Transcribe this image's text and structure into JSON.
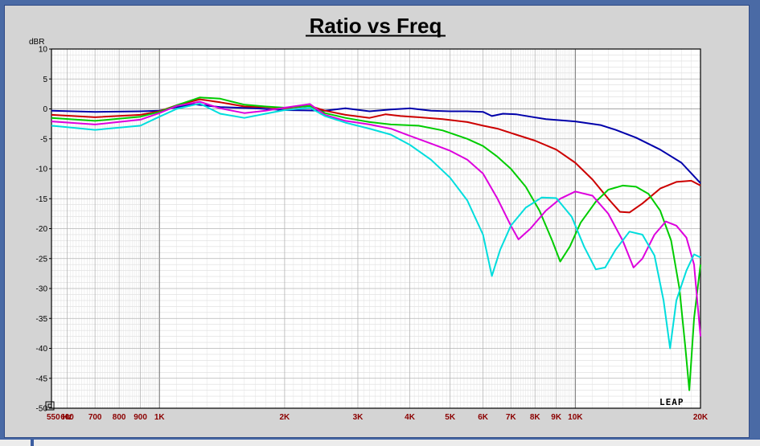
{
  "chart_data": {
    "type": "line",
    "title": "Ratio vs Freq",
    "ylabel": "dBR",
    "xlabel": "",
    "x_scale": "log",
    "xlim": [
      550,
      20000
    ],
    "ylim": [
      -50,
      10
    ],
    "y_ticks": [
      10,
      5,
      0,
      -5,
      -10,
      -15,
      -20,
      -25,
      -30,
      -35,
      -40,
      -45,
      -50
    ],
    "y_tick_labels": [
      "10",
      "5",
      "0",
      "-5",
      "-10",
      "-15",
      "-20",
      "-25",
      "-30",
      "-35",
      "-40",
      "-45",
      "-50"
    ],
    "x_ticks": [
      550,
      600,
      700,
      800,
      900,
      1000,
      2000,
      3000,
      4000,
      5000,
      6000,
      7000,
      8000,
      9000,
      10000,
      20000
    ],
    "x_tick_labels": [
      "550 Hz",
      "600",
      "700",
      "800",
      "900",
      "1K",
      "2K",
      "3K",
      "4K",
      "5K",
      "6K",
      "7K",
      "8K",
      "9K",
      "10K",
      "20K"
    ],
    "grid": true,
    "logo": "LEAP",
    "series": [
      {
        "color": "#0000aa",
        "points": [
          [
            550,
            -0.3
          ],
          [
            700,
            -0.5
          ],
          [
            900,
            -0.4
          ],
          [
            1000,
            -0.3
          ],
          [
            1200,
            0.8
          ],
          [
            1400,
            0.3
          ],
          [
            1700,
            0.1
          ],
          [
            2000,
            -0.2
          ],
          [
            2500,
            -0.3
          ],
          [
            2800,
            0.1
          ],
          [
            3200,
            -0.4
          ],
          [
            3600,
            -0.1
          ],
          [
            4000,
            0.1
          ],
          [
            4500,
            -0.3
          ],
          [
            5000,
            -0.4
          ],
          [
            5500,
            -0.4
          ],
          [
            6000,
            -0.5
          ],
          [
            6300,
            -1.2
          ],
          [
            6700,
            -0.8
          ],
          [
            7200,
            -0.9
          ],
          [
            7800,
            -1.3
          ],
          [
            8500,
            -1.7
          ],
          [
            10000,
            -2.1
          ],
          [
            11500,
            -2.7
          ],
          [
            12500,
            -3.5
          ],
          [
            14000,
            -4.8
          ],
          [
            16000,
            -6.8
          ],
          [
            18000,
            -9.0
          ],
          [
            20000,
            -12.4
          ]
        ]
      },
      {
        "color": "#cc0000",
        "points": [
          [
            550,
            -1.0
          ],
          [
            700,
            -1.4
          ],
          [
            900,
            -1.0
          ],
          [
            1000,
            -0.4
          ],
          [
            1100,
            0.6
          ],
          [
            1250,
            1.6
          ],
          [
            1400,
            1.1
          ],
          [
            1600,
            0.4
          ],
          [
            1800,
            0.3
          ],
          [
            2000,
            0.1
          ],
          [
            2300,
            0.5
          ],
          [
            2500,
            -0.3
          ],
          [
            2800,
            -1.0
          ],
          [
            3200,
            -1.5
          ],
          [
            3500,
            -0.9
          ],
          [
            3800,
            -1.2
          ],
          [
            4200,
            -1.4
          ],
          [
            4800,
            -1.7
          ],
          [
            5500,
            -2.2
          ],
          [
            6000,
            -2.8
          ],
          [
            6500,
            -3.3
          ],
          [
            7200,
            -4.3
          ],
          [
            8000,
            -5.3
          ],
          [
            9000,
            -6.8
          ],
          [
            10000,
            -9.0
          ],
          [
            11000,
            -11.8
          ],
          [
            12000,
            -15.0
          ],
          [
            12800,
            -17.2
          ],
          [
            13500,
            -17.3
          ],
          [
            14500,
            -15.8
          ],
          [
            16000,
            -13.3
          ],
          [
            17500,
            -12.2
          ],
          [
            19000,
            -12.0
          ],
          [
            20000,
            -12.8
          ]
        ]
      },
      {
        "color": "#00cc00",
        "points": [
          [
            550,
            -1.5
          ],
          [
            700,
            -2.0
          ],
          [
            900,
            -1.3
          ],
          [
            1000,
            -0.5
          ],
          [
            1100,
            0.6
          ],
          [
            1250,
            1.9
          ],
          [
            1400,
            1.7
          ],
          [
            1600,
            0.7
          ],
          [
            1800,
            0.4
          ],
          [
            2000,
            0.2
          ],
          [
            2300,
            0.5
          ],
          [
            2500,
            -0.7
          ],
          [
            2800,
            -1.5
          ],
          [
            3200,
            -2.2
          ],
          [
            3600,
            -2.6
          ],
          [
            4200,
            -2.8
          ],
          [
            4800,
            -3.6
          ],
          [
            5500,
            -5.0
          ],
          [
            6000,
            -6.2
          ],
          [
            6500,
            -8.0
          ],
          [
            7000,
            -10.0
          ],
          [
            7600,
            -13.0
          ],
          [
            8200,
            -17.0
          ],
          [
            8800,
            -22.0
          ],
          [
            9200,
            -25.5
          ],
          [
            9700,
            -23.0
          ],
          [
            10300,
            -19.0
          ],
          [
            11200,
            -15.5
          ],
          [
            12000,
            -13.5
          ],
          [
            13000,
            -12.8
          ],
          [
            14000,
            -13.0
          ],
          [
            15000,
            -14.2
          ],
          [
            16000,
            -17.0
          ],
          [
            17000,
            -22.0
          ],
          [
            17800,
            -30.0
          ],
          [
            18400,
            -40.0
          ],
          [
            18800,
            -47.0
          ],
          [
            19300,
            -35.0
          ],
          [
            20000,
            -26.0
          ]
        ]
      },
      {
        "color": "#dd00dd",
        "points": [
          [
            550,
            -2.1
          ],
          [
            700,
            -2.6
          ],
          [
            900,
            -1.8
          ],
          [
            1000,
            -0.7
          ],
          [
            1100,
            0.5
          ],
          [
            1250,
            1.2
          ],
          [
            1400,
            0.1
          ],
          [
            1600,
            -0.7
          ],
          [
            1800,
            -0.3
          ],
          [
            2000,
            0.2
          ],
          [
            2300,
            0.8
          ],
          [
            2500,
            -1.0
          ],
          [
            2800,
            -2.0
          ],
          [
            3200,
            -2.6
          ],
          [
            3600,
            -3.3
          ],
          [
            4000,
            -4.5
          ],
          [
            4500,
            -5.8
          ],
          [
            5000,
            -7.0
          ],
          [
            5500,
            -8.5
          ],
          [
            6000,
            -10.8
          ],
          [
            6500,
            -15.0
          ],
          [
            7000,
            -19.5
          ],
          [
            7300,
            -21.8
          ],
          [
            7800,
            -20.0
          ],
          [
            8500,
            -17.0
          ],
          [
            9200,
            -15.0
          ],
          [
            10000,
            -13.8
          ],
          [
            11000,
            -14.5
          ],
          [
            12000,
            -17.5
          ],
          [
            13000,
            -22.0
          ],
          [
            13800,
            -26.5
          ],
          [
            14500,
            -25.0
          ],
          [
            15500,
            -21.0
          ],
          [
            16500,
            -18.8
          ],
          [
            17500,
            -19.5
          ],
          [
            18500,
            -21.5
          ],
          [
            19300,
            -26.0
          ],
          [
            20000,
            -38.0
          ]
        ]
      },
      {
        "color": "#00dddd",
        "points": [
          [
            550,
            -2.8
          ],
          [
            700,
            -3.5
          ],
          [
            900,
            -2.8
          ],
          [
            1000,
            -1.3
          ],
          [
            1100,
            0.0
          ],
          [
            1250,
            0.9
          ],
          [
            1400,
            -0.8
          ],
          [
            1600,
            -1.5
          ],
          [
            1800,
            -0.8
          ],
          [
            2000,
            -0.2
          ],
          [
            2300,
            0.2
          ],
          [
            2500,
            -1.2
          ],
          [
            2800,
            -2.3
          ],
          [
            3200,
            -3.3
          ],
          [
            3600,
            -4.3
          ],
          [
            4000,
            -6.0
          ],
          [
            4500,
            -8.5
          ],
          [
            5000,
            -11.5
          ],
          [
            5500,
            -15.3
          ],
          [
            6000,
            -21.0
          ],
          [
            6300,
            -27.9
          ],
          [
            6600,
            -23.5
          ],
          [
            7000,
            -19.5
          ],
          [
            7600,
            -16.5
          ],
          [
            8300,
            -14.8
          ],
          [
            9000,
            -14.9
          ],
          [
            9800,
            -18.0
          ],
          [
            10500,
            -23.0
          ],
          [
            11200,
            -26.8
          ],
          [
            11800,
            -26.5
          ],
          [
            12500,
            -23.5
          ],
          [
            13500,
            -20.5
          ],
          [
            14500,
            -21.0
          ],
          [
            15500,
            -24.5
          ],
          [
            16300,
            -32.0
          ],
          [
            16900,
            -40.0
          ],
          [
            17500,
            -32.0
          ],
          [
            18500,
            -27.0
          ],
          [
            19300,
            -24.3
          ],
          [
            20000,
            -24.8
          ]
        ]
      }
    ]
  }
}
